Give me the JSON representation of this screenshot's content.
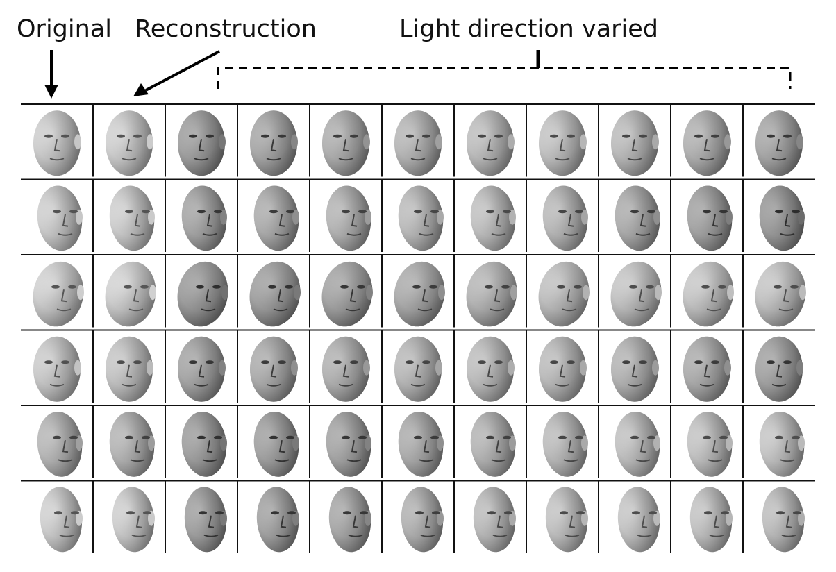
{
  "figure": {
    "label_original": "Original",
    "label_reconstruction": "Reconstruction",
    "label_light_varied": "Light direction varied",
    "rows": [
      {
        "pose": "frontal",
        "lighting": [
          0.92,
          0.94,
          0.55,
          0.62,
          0.68,
          0.74,
          0.8,
          0.84,
          0.78,
          0.7,
          0.62
        ]
      },
      {
        "pose": "three-quarter-right",
        "lighting": [
          0.92,
          0.93,
          0.6,
          0.66,
          0.72,
          0.78,
          0.82,
          0.76,
          0.66,
          0.58,
          0.5
        ]
      },
      {
        "pose": "half-profile-right",
        "lighting": [
          0.95,
          0.96,
          0.52,
          0.56,
          0.6,
          0.66,
          0.74,
          0.82,
          0.86,
          0.88,
          0.86
        ]
      },
      {
        "pose": "frontal",
        "lighting": [
          0.9,
          0.86,
          0.6,
          0.66,
          0.7,
          0.76,
          0.8,
          0.78,
          0.72,
          0.66,
          0.58
        ]
      },
      {
        "pose": "three-quarter-right",
        "lighting": [
          0.74,
          0.72,
          0.54,
          0.56,
          0.6,
          0.66,
          0.72,
          0.78,
          0.82,
          0.84,
          0.86
        ]
      },
      {
        "pose": "near-profile-right",
        "lighting": [
          0.94,
          0.93,
          0.56,
          0.58,
          0.62,
          0.7,
          0.78,
          0.84,
          0.86,
          0.84,
          0.8
        ]
      }
    ]
  }
}
